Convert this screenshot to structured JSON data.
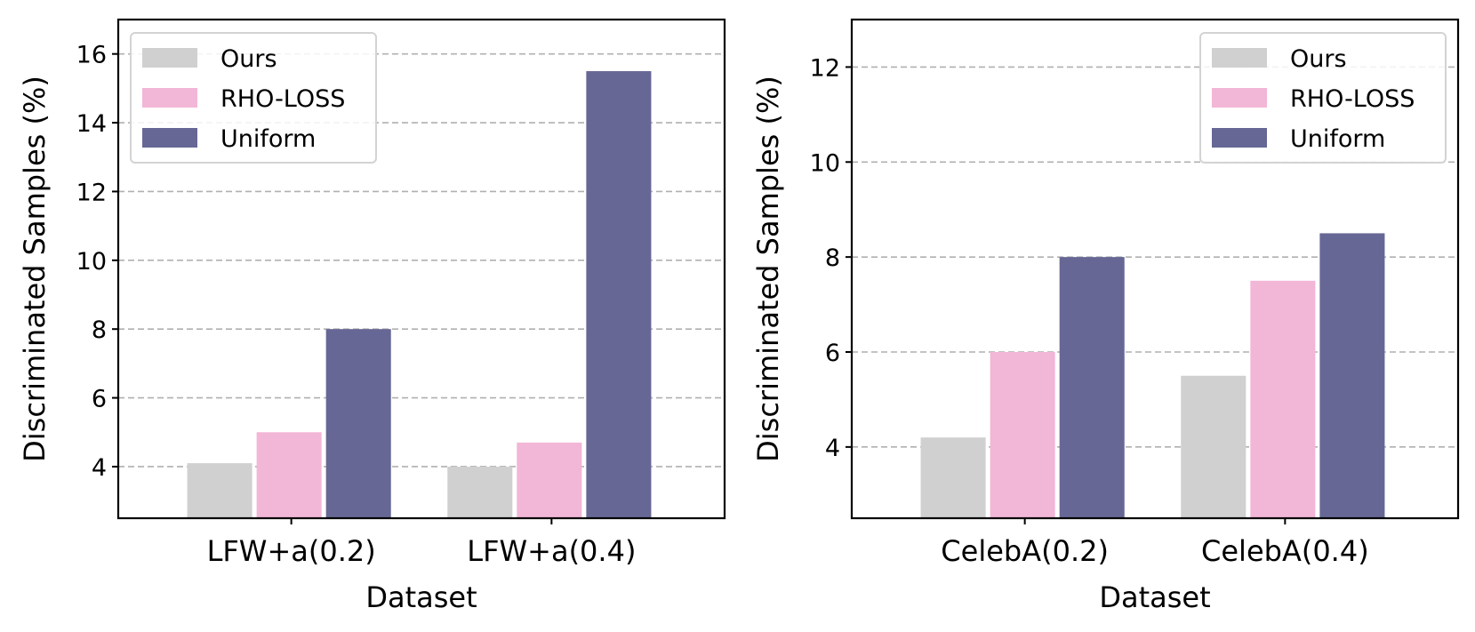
{
  "chart_data": [
    {
      "type": "bar",
      "title": "",
      "categories": [
        "LFW+a(0.2)",
        "LFW+a(0.4)"
      ],
      "series": [
        {
          "name": "Ours",
          "color": "#d0d0d0",
          "values": [
            4.1,
            4.0
          ]
        },
        {
          "name": "RHO-LOSS",
          "color": "#f2b6d6",
          "values": [
            5.0,
            4.7
          ]
        },
        {
          "name": "Uniform",
          "color": "#666794",
          "values": [
            8.0,
            15.5
          ]
        }
      ],
      "xlabel": "Dataset",
      "ylabel": "Discriminated Samples (%)",
      "ylim": [
        2.5,
        17
      ],
      "yticks": [
        4,
        6,
        8,
        10,
        12,
        14,
        16
      ],
      "ytick_labels": [
        "4",
        "6",
        "8",
        "10",
        "12",
        "14",
        "16"
      ],
      "grid": "y-dashed",
      "legend": "upper-left"
    },
    {
      "type": "bar",
      "title": "",
      "categories": [
        "CelebA(0.2)",
        "CelebA(0.4)"
      ],
      "series": [
        {
          "name": "Ours",
          "color": "#d0d0d0",
          "values": [
            4.2,
            5.5
          ]
        },
        {
          "name": "RHO-LOSS",
          "color": "#f2b6d6",
          "values": [
            6.0,
            7.5
          ]
        },
        {
          "name": "Uniform",
          "color": "#666794",
          "values": [
            8.0,
            8.5
          ]
        }
      ],
      "xlabel": "Dataset",
      "ylabel": "Discriminated Samples (%)",
      "ylim": [
        2.5,
        13
      ],
      "yticks": [
        4,
        6,
        8,
        10,
        12
      ],
      "ytick_labels": [
        "4",
        "6",
        "8",
        "10",
        "12"
      ],
      "grid": "y-dashed",
      "legend": "upper-right"
    }
  ]
}
